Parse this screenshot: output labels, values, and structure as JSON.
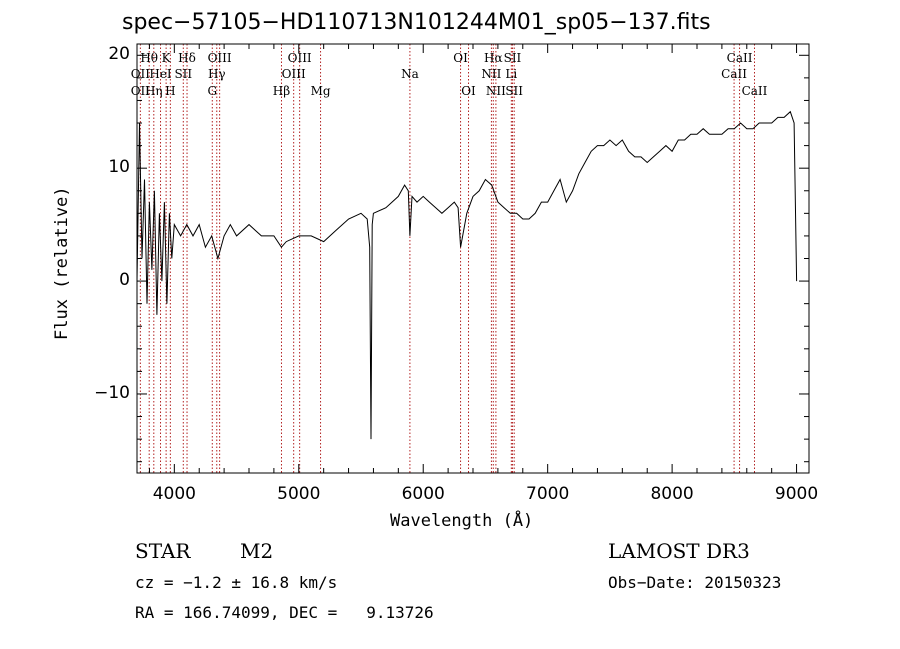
{
  "chart_data": {
    "type": "line",
    "title": "spec−57105−HD110713N101244M01_sp05−137.fits",
    "xlabel": "Wavelength (Å)",
    "ylabel": "Flux (relative)",
    "xlim": [
      3700,
      9100
    ],
    "ylim": [
      -17,
      21
    ],
    "xticks": [
      4000,
      5000,
      6000,
      7000,
      8000,
      9000
    ],
    "xtick_labels": [
      "4000",
      "5000",
      "6000",
      "7000",
      "8000",
      "9000"
    ],
    "yticks": [
      -10,
      0,
      10,
      20
    ],
    "ytick_labels": [
      "−10",
      "0",
      "10",
      "20"
    ],
    "grid": false,
    "series": [
      {
        "x": [
          3700,
          3720,
          3740,
          3760,
          3780,
          3800,
          3820,
          3840,
          3860,
          3880,
          3900,
          3920,
          3940,
          3960,
          3980,
          4000,
          4050,
          4100,
          4150,
          4200,
          4250,
          4300,
          4350,
          4400,
          4450,
          4500,
          4600,
          4700,
          4800,
          4860,
          4900,
          5000,
          5100,
          5200,
          5300,
          5400,
          5500,
          5550,
          5570,
          5580,
          5590,
          5600,
          5700,
          5800,
          5850,
          5880,
          5893,
          5910,
          5950,
          6000,
          6050,
          6100,
          6150,
          6200,
          6250,
          6280,
          6300,
          6350,
          6400,
          6450,
          6500,
          6550,
          6600,
          6650,
          6700,
          6750,
          6800,
          6850,
          6900,
          6950,
          7000,
          7050,
          7100,
          7150,
          7200,
          7250,
          7300,
          7350,
          7400,
          7450,
          7500,
          7550,
          7600,
          7650,
          7700,
          7750,
          7800,
          7850,
          7900,
          7950,
          8000,
          8050,
          8100,
          8150,
          8200,
          8250,
          8300,
          8350,
          8400,
          8450,
          8500,
          8550,
          8600,
          8650,
          8700,
          8750,
          8800,
          8850,
          8900,
          8950,
          8980,
          9000
        ],
        "y": [
          0,
          14,
          2,
          9,
          -2,
          7,
          1,
          8,
          -3,
          6,
          0,
          7,
          -2,
          6,
          2,
          5,
          4,
          5,
          4,
          5,
          3,
          4,
          2,
          4,
          5,
          4,
          5,
          4,
          4,
          3,
          3.5,
          4,
          4,
          3.5,
          4.5,
          5.5,
          6,
          5.5,
          3,
          -14,
          5,
          6,
          6.5,
          7.5,
          8.5,
          8,
          4,
          7.5,
          7,
          7.5,
          7,
          6.5,
          6,
          6.5,
          7,
          6.5,
          3,
          6,
          7.5,
          8,
          9,
          8.5,
          7,
          6.5,
          6,
          6,
          5.5,
          5.5,
          6,
          7,
          7,
          8,
          9,
          7,
          8,
          9.5,
          10.5,
          11.5,
          12,
          12,
          12.5,
          12,
          12.5,
          11.5,
          11,
          11,
          10.5,
          11,
          11.5,
          12,
          11.5,
          12.5,
          12.5,
          13,
          13,
          13.5,
          13,
          13,
          13,
          13.5,
          13.5,
          14,
          13.5,
          13.5,
          14,
          14,
          14,
          14.5,
          14.5,
          15,
          14,
          0
        ]
      }
    ],
    "line_labels_row1": [
      {
        "text": "Hθ",
        "x": 3798
      },
      {
        "text": "K",
        "x": 3934
      },
      {
        "text": "Hδ",
        "x": 4102
      },
      {
        "text": "OIII",
        "x": 4364
      },
      {
        "text": "OIII",
        "x": 5007
      },
      {
        "text": "OI",
        "x": 6300
      },
      {
        "text": "Hα",
        "x": 6563
      },
      {
        "text": "SII",
        "x": 6717
      },
      {
        "text": "CaII",
        "x": 8542
      }
    ],
    "line_labels_row2": [
      {
        "text": "OII",
        "x": 3727
      },
      {
        "text": "HeI",
        "x": 3889
      },
      {
        "text": "SII",
        "x": 4072
      },
      {
        "text": "Hγ",
        "x": 4341
      },
      {
        "text": "OIII",
        "x": 4959
      },
      {
        "text": "Na",
        "x": 5893
      },
      {
        "text": "NII",
        "x": 6548
      },
      {
        "text": "Li",
        "x": 6708
      },
      {
        "text": "CaII",
        "x": 8498
      }
    ],
    "line_labels_row3": [
      {
        "text": "OII",
        "x": 3727
      },
      {
        "text": "Hη",
        "x": 3835
      },
      {
        "text": "H",
        "x": 3968
      },
      {
        "text": "G",
        "x": 4305
      },
      {
        "text": "Hβ",
        "x": 4861
      },
      {
        "text": "Mg",
        "x": 5175
      },
      {
        "text": "OI",
        "x": 6364
      },
      {
        "text": "NII",
        "x": 6584
      },
      {
        "text": "SII",
        "x": 6731
      },
      {
        "text": "CaII",
        "x": 8662
      }
    ],
    "line_markers": [
      3727,
      3798,
      3835,
      3889,
      3934,
      3968,
      4072,
      4102,
      4305,
      4341,
      4364,
      4861,
      4959,
      5007,
      5175,
      5893,
      6300,
      6364,
      6548,
      6563,
      6584,
      6708,
      6717,
      6731,
      8498,
      8542,
      8662
    ],
    "marker_color": "#b22222",
    "line_color": "#000000"
  },
  "footer": {
    "class_label": "STAR",
    "subclass": "M2",
    "survey": "LAMOST DR3",
    "cz_text": "cz = −1.2 ± 16.8 km/s",
    "obsdate_text": "Obs−Date: 20150323",
    "radec_text": "RA = 166.74099, DEC =   9.13726"
  }
}
